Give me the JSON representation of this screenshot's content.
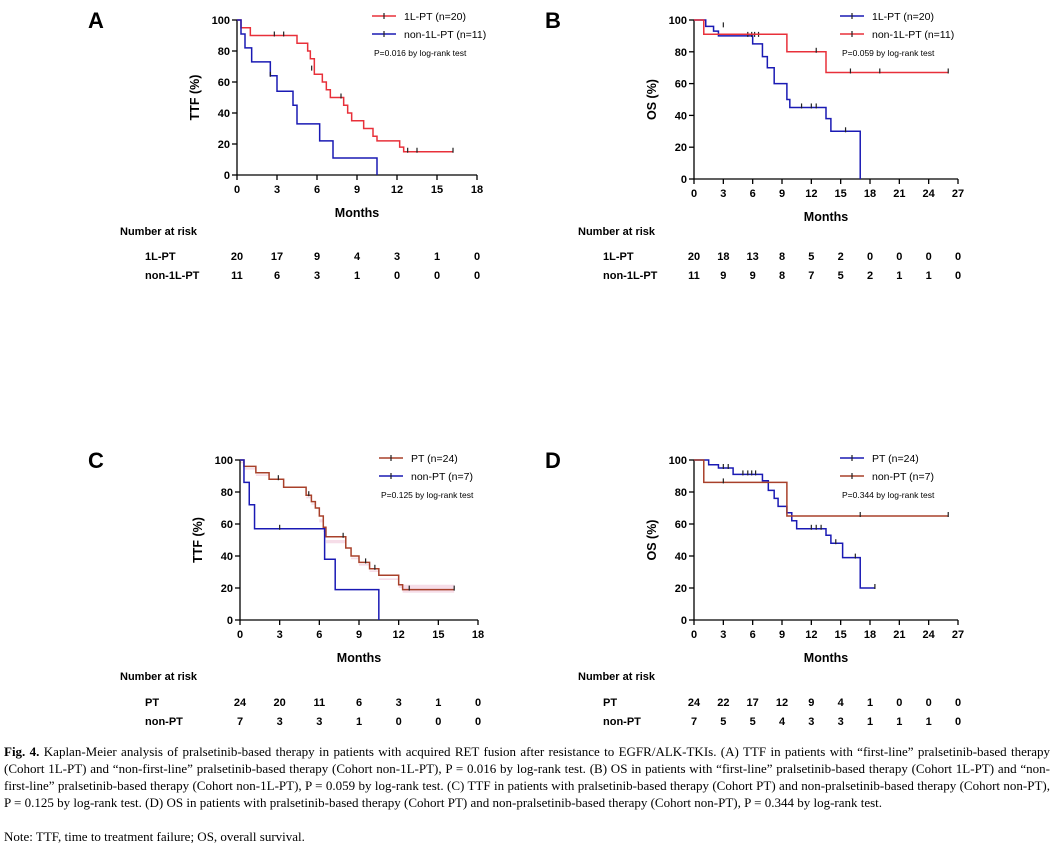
{
  "caption": {
    "label": "Fig. 4.",
    "text": "Kaplan-Meier analysis of pralsetinib-based therapy in patients with acquired RET fusion after resistance to EGFR/ALK-TKIs. (A) TTF in patients with “first-line” pralsetinib-based therapy (Cohort 1L-PT) and “non-first-line” pralsetinib-based therapy (Cohort non-1L-PT), P = 0.016 by log-rank test. (B) OS in patients with “first-line” pralsetinib-based therapy (Cohort 1L-PT) and “non-first-line” pralsetinib-based therapy (Cohort non-1L-PT), P = 0.059 by log-rank test. (C) TTF in patients with pralsetinib-based therapy (Cohort PT) and non-pralsetinib-based therapy (Cohort non-PT), P = 0.125 by log-rank test. (D) OS in patients with pralsetinib-based therapy (Cohort PT) and non-pralsetinib-based therapy (Cohort non-PT), P = 0.344 by log-rank test.",
    "note": "Note: TTF, time to treatment failure; OS, overall survival."
  },
  "colors": {
    "red": "#e8303a",
    "blue": "#1a1ab4",
    "brown": "#a8402a",
    "pink_band": "#f6dde8",
    "axis": "#000000"
  },
  "chart_data": [
    {
      "panel": "A",
      "type": "line",
      "ylabel": "TTF (%)",
      "xlabel": "Months",
      "xlim": [
        0,
        18
      ],
      "ylim": [
        0,
        100
      ],
      "xticks": [
        0,
        3,
        6,
        9,
        12,
        15,
        18
      ],
      "yticks": [
        0,
        20,
        40,
        60,
        80,
        100
      ],
      "pvalue": "P=0.016 by log-rank test",
      "series": [
        {
          "name": "1L-PT (n=20)",
          "color": "red",
          "steps": [
            [
              0,
              100
            ],
            [
              0.3,
              95
            ],
            [
              1,
              90
            ],
            [
              4.5,
              85
            ],
            [
              5.3,
              80
            ],
            [
              5.5,
              75
            ],
            [
              5.8,
              65
            ],
            [
              6.4,
              60
            ],
            [
              6.7,
              55
            ],
            [
              7,
              50
            ],
            [
              8,
              45
            ],
            [
              8.3,
              40
            ],
            [
              8.6,
              35
            ],
            [
              9.5,
              30
            ],
            [
              10.2,
              25
            ],
            [
              10.5,
              22
            ],
            [
              12.2,
              18
            ],
            [
              12.5,
              15
            ],
            [
              16.2,
              15
            ]
          ],
          "censors": [
            [
              2.8,
              90
            ],
            [
              3.5,
              90
            ],
            [
              5.6,
              68
            ],
            [
              7.8,
              50
            ],
            [
              12.8,
              15
            ],
            [
              13.5,
              15
            ],
            [
              16.2,
              15
            ]
          ]
        },
        {
          "name": "non-1L-PT (n=11)",
          "color": "blue",
          "steps": [
            [
              0,
              100
            ],
            [
              0.3,
              91
            ],
            [
              0.6,
              82
            ],
            [
              1.1,
              73
            ],
            [
              2.5,
              64
            ],
            [
              3,
              54
            ],
            [
              4.2,
              45
            ],
            [
              4.5,
              33
            ],
            [
              6.2,
              22
            ],
            [
              7.2,
              11
            ],
            [
              10.5,
              0
            ]
          ],
          "censors": [
            [
              2.5,
              64
            ]
          ]
        }
      ],
      "risk": {
        "header": "Number at risk",
        "times": [
          0,
          3,
          6,
          9,
          12,
          15,
          18
        ],
        "rows": [
          {
            "label": "1L-PT",
            "values": [
              20,
              17,
              9,
              4,
              3,
              1,
              0
            ]
          },
          {
            "label": "non-1L-PT",
            "values": [
              11,
              6,
              3,
              1,
              0,
              0,
              0
            ]
          }
        ]
      }
    },
    {
      "panel": "B",
      "type": "line",
      "ylabel": "OS (%)",
      "xlabel": "Months",
      "xlim": [
        0,
        27
      ],
      "ylim": [
        0,
        100
      ],
      "xticks": [
        0,
        3,
        6,
        9,
        12,
        15,
        18,
        21,
        24,
        27
      ],
      "yticks": [
        0,
        20,
        40,
        60,
        80,
        100
      ],
      "pvalue": "P=0.059 by log-rank test",
      "series": [
        {
          "name": "1L-PT (n=20)",
          "color": "blue",
          "steps": [
            [
              0,
              100
            ],
            [
              1.2,
              96
            ],
            [
              2,
              93
            ],
            [
              2.5,
              90
            ],
            [
              6,
              85
            ],
            [
              7,
              77
            ],
            [
              7.5,
              70
            ],
            [
              8.2,
              60
            ],
            [
              9.5,
              50
            ],
            [
              9.8,
              45
            ],
            [
              13.5,
              38
            ],
            [
              14,
              30
            ],
            [
              16.5,
              30
            ],
            [
              17,
              0
            ]
          ],
          "censors": [
            [
              3,
              96
            ],
            [
              5.5,
              90
            ],
            [
              5.9,
              90
            ],
            [
              6.2,
              90
            ],
            [
              6.6,
              90
            ],
            [
              11,
              45
            ],
            [
              12,
              45
            ],
            [
              12.5,
              45
            ],
            [
              15.5,
              30
            ]
          ]
        },
        {
          "name": "non-1L-PT (n=11)",
          "color": "red",
          "steps": [
            [
              0,
              100
            ],
            [
              1,
              91
            ],
            [
              9.5,
              80
            ],
            [
              13.5,
              67
            ],
            [
              26,
              67
            ]
          ],
          "censors": [
            [
              12.5,
              80
            ],
            [
              16,
              67
            ],
            [
              19,
              67
            ],
            [
              26,
              67
            ]
          ]
        }
      ],
      "risk": {
        "header": "Number at risk",
        "times": [
          0,
          3,
          6,
          9,
          12,
          15,
          18,
          21,
          24,
          27
        ],
        "rows": [
          {
            "label": "1L-PT",
            "values": [
              20,
              18,
              13,
              8,
              5,
              2,
              0,
              0,
              0,
              0
            ]
          },
          {
            "label": "non-1L-PT",
            "values": [
              11,
              9,
              9,
              8,
              7,
              5,
              2,
              1,
              1,
              0
            ]
          }
        ]
      }
    },
    {
      "panel": "C",
      "type": "line",
      "ylabel": "TTF (%)",
      "xlabel": "Months",
      "xlim": [
        0,
        18
      ],
      "ylim": [
        0,
        100
      ],
      "xticks": [
        0,
        3,
        6,
        9,
        12,
        15,
        18
      ],
      "yticks": [
        0,
        20,
        40,
        60,
        80,
        100
      ],
      "pvalue": "P=0.125 by log-rank test",
      "series": [
        {
          "name": "PT (n=24)",
          "color": "brown",
          "steps": [
            [
              0,
              100
            ],
            [
              0.3,
              96
            ],
            [
              1.2,
              92
            ],
            [
              2.2,
              88
            ],
            [
              3.3,
              83
            ],
            [
              5,
              78
            ],
            [
              5.4,
              74
            ],
            [
              5.7,
              70
            ],
            [
              6,
              65
            ],
            [
              6.3,
              58
            ],
            [
              6.5,
              52
            ],
            [
              8,
              45
            ],
            [
              8.4,
              40
            ],
            [
              9,
              36
            ],
            [
              9.8,
              32
            ],
            [
              10.5,
              28
            ],
            [
              12,
              22
            ],
            [
              12.3,
              19
            ],
            [
              16.2,
              19
            ]
          ],
          "censors": [
            [
              2.9,
              88
            ],
            [
              5.2,
              78
            ],
            [
              7.8,
              52
            ],
            [
              9.5,
              36
            ],
            [
              10.2,
              32
            ],
            [
              12.8,
              19
            ],
            [
              16.2,
              19
            ]
          ]
        },
        {
          "name": "non-PT (n=7)",
          "color": "blue",
          "steps": [
            [
              0,
              100
            ],
            [
              0.3,
              86
            ],
            [
              0.7,
              72
            ],
            [
              1.1,
              57
            ],
            [
              6.4,
              38
            ],
            [
              7.2,
              19
            ],
            [
              10.5,
              0
            ]
          ],
          "censors": [
            [
              3,
              57
            ]
          ]
        }
      ],
      "risk": {
        "header": "Number at risk",
        "times": [
          0,
          3,
          6,
          9,
          12,
          15,
          18
        ],
        "rows": [
          {
            "label": "PT",
            "values": [
              24,
              20,
              11,
              6,
              3,
              1,
              0
            ]
          },
          {
            "label": "non-PT",
            "values": [
              7,
              3,
              3,
              1,
              0,
              0,
              0
            ]
          }
        ]
      }
    },
    {
      "panel": "D",
      "type": "line",
      "ylabel": "OS (%)",
      "xlabel": "Months",
      "xlim": [
        0,
        27
      ],
      "ylim": [
        0,
        100
      ],
      "xticks": [
        0,
        3,
        6,
        9,
        12,
        15,
        18,
        21,
        24,
        27
      ],
      "yticks": [
        0,
        20,
        40,
        60,
        80,
        100
      ],
      "pvalue": "P=0.344 by log-rank test",
      "series": [
        {
          "name": "PT (n=24)",
          "color": "blue",
          "steps": [
            [
              0,
              100
            ],
            [
              1.5,
              97
            ],
            [
              2.5,
              95
            ],
            [
              4,
              91
            ],
            [
              7,
              87
            ],
            [
              7.6,
              81
            ],
            [
              8.2,
              76
            ],
            [
              8.6,
              71
            ],
            [
              9.5,
              67
            ],
            [
              10,
              62
            ],
            [
              10.5,
              57
            ],
            [
              13.5,
              53
            ],
            [
              14,
              48
            ],
            [
              15.2,
              39
            ],
            [
              17,
              20
            ],
            [
              18.5,
              20
            ]
          ],
          "censors": [
            [
              3,
              95
            ],
            [
              3.5,
              95
            ],
            [
              5,
              91
            ],
            [
              5.5,
              91
            ],
            [
              5.9,
              91
            ],
            [
              6.3,
              91
            ],
            [
              12,
              57
            ],
            [
              12.5,
              57
            ],
            [
              13,
              57
            ],
            [
              14.5,
              48
            ],
            [
              16.5,
              39
            ],
            [
              18.5,
              20
            ]
          ]
        },
        {
          "name": "non-PT (n=7)",
          "color": "brown",
          "steps": [
            [
              0,
              100
            ],
            [
              1,
              86
            ],
            [
              9.5,
              65
            ],
            [
              26,
              65
            ]
          ],
          "censors": [
            [
              3,
              86
            ],
            [
              17,
              65
            ],
            [
              26,
              65
            ]
          ]
        }
      ],
      "risk": {
        "header": "Number at risk",
        "times": [
          0,
          3,
          6,
          9,
          12,
          15,
          18,
          21,
          24,
          27
        ],
        "rows": [
          {
            "label": "PT",
            "values": [
              24,
              22,
              17,
              12,
              9,
              4,
              1,
              0,
              0,
              0
            ]
          },
          {
            "label": "non-PT",
            "values": [
              7,
              5,
              5,
              4,
              3,
              3,
              1,
              1,
              1,
              0
            ]
          }
        ]
      }
    }
  ]
}
